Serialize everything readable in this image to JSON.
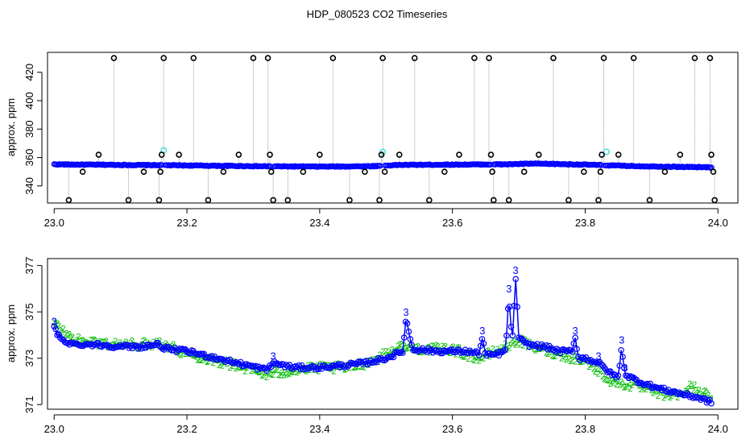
{
  "figure": {
    "title": "HDP_080523  CO2 Timeseries"
  },
  "colors": {
    "blue": "#0000ff",
    "cyan": "#40e0e0",
    "green": "#00bb00",
    "black": "#000000",
    "grey": "#9a9a9a"
  },
  "chart_data": [
    {
      "type": "scatter",
      "title": "",
      "xlabel": "",
      "ylabel": "approx. ppm",
      "xlim": [
        22.99,
        24.03
      ],
      "ylim": [
        328,
        434
      ],
      "xticks": [
        "23.0",
        "23.2",
        "23.4",
        "23.6",
        "23.8",
        "24.0"
      ],
      "yticks": [
        "340",
        "360",
        "380",
        "400",
        "420"
      ],
      "series": [
        {
          "x": [
            23.0,
            23.04,
            23.08,
            23.12,
            23.16,
            23.2,
            23.24,
            23.28,
            23.32,
            23.36,
            23.4,
            23.44,
            23.48,
            23.52,
            23.56,
            23.6,
            23.64,
            23.68,
            23.72,
            23.76,
            23.8,
            23.84,
            23.88,
            23.92,
            23.96,
            23.99
          ],
          "y": [
            355.2,
            355.0,
            354.9,
            354.7,
            354.6,
            354.4,
            354.2,
            354.0,
            353.8,
            353.7,
            353.6,
            353.7,
            353.9,
            354.8,
            354.9,
            355.0,
            355.1,
            355.2,
            355.7,
            355.4,
            355.0,
            354.4,
            353.9,
            353.6,
            353.3,
            353.1
          ]
        },
        {
          "x": [
            23.165,
            23.495,
            23.832
          ],
          "y": [
            365,
            364,
            364
          ]
        },
        {
          "x": [
            23.022,
            23.043,
            23.067,
            23.09,
            23.112,
            23.135,
            23.158,
            23.16,
            23.162,
            23.165,
            23.188,
            23.21,
            23.232,
            23.255,
            23.278,
            23.3,
            23.322,
            23.325,
            23.327,
            23.33,
            23.352,
            23.375,
            23.4,
            23.42,
            23.445,
            23.468,
            23.49,
            23.493,
            23.495,
            23.498,
            23.52,
            23.543,
            23.565,
            23.588,
            23.61,
            23.633,
            23.655,
            23.658,
            23.66,
            23.662,
            23.685,
            23.708,
            23.73,
            23.752,
            23.775,
            23.798,
            23.82,
            23.823,
            23.825,
            23.828,
            23.85,
            23.873,
            23.897,
            23.92,
            23.943,
            23.965,
            23.988,
            23.99,
            23.993,
            23.995
          ],
          "y": [
            330,
            350,
            362,
            430,
            330,
            350,
            330,
            350,
            362,
            430,
            362,
            430,
            330,
            350,
            362,
            430,
            430,
            362,
            350,
            330,
            330,
            350,
            362,
            430,
            330,
            350,
            330,
            362,
            430,
            350,
            362,
            430,
            330,
            350,
            362,
            430,
            430,
            362,
            350,
            330,
            330,
            350,
            362,
            430,
            330,
            350,
            330,
            350,
            362,
            430,
            362,
            430,
            330,
            350,
            362,
            430,
            430,
            362,
            350,
            330
          ]
        }
      ]
    },
    {
      "type": "scatter",
      "title": "",
      "xlabel": "",
      "ylabel": "approx. ppm",
      "xlim": [
        22.99,
        24.03
      ],
      "ylim": [
        370.8,
        377.3
      ],
      "xticks": [
        "23.0",
        "23.2",
        "23.4",
        "23.6",
        "23.8",
        "24.0"
      ],
      "yticks": [
        "371",
        "373",
        "375",
        "377"
      ],
      "series": [
        {
          "x": [
            23.0,
            23.01,
            23.03,
            23.06,
            23.1,
            23.13,
            23.155,
            23.17,
            23.2,
            23.23,
            23.26,
            23.29,
            23.32,
            23.33,
            23.36,
            23.4,
            23.44,
            23.47,
            23.5,
            23.525,
            23.53,
            23.54,
            23.58,
            23.62,
            23.64,
            23.645,
            23.65,
            23.67,
            23.68,
            23.685,
            23.69,
            23.695,
            23.7,
            23.71,
            23.74,
            23.76,
            23.78,
            23.785,
            23.79,
            23.8,
            23.82,
            23.84,
            23.85,
            23.855,
            23.86,
            23.88,
            23.91,
            23.94,
            23.97,
            23.99
          ],
          "y": [
            374.3,
            373.8,
            373.6,
            373.6,
            373.5,
            373.5,
            373.6,
            373.4,
            373.3,
            373.1,
            372.9,
            372.7,
            372.5,
            372.8,
            372.6,
            372.6,
            372.7,
            372.8,
            373.0,
            373.3,
            374.7,
            373.4,
            373.3,
            373.3,
            373.2,
            373.9,
            373.1,
            373.2,
            373.3,
            375.7,
            373.6,
            376.5,
            373.9,
            373.6,
            373.5,
            373.3,
            373.3,
            373.9,
            373.0,
            373.0,
            372.8,
            372.3,
            372.2,
            373.5,
            372.3,
            372.0,
            371.7,
            371.5,
            371.3,
            371.1
          ]
        },
        {
          "x": [
            23.0,
            23.03,
            23.06,
            23.1,
            23.13,
            23.16,
            23.2,
            23.23,
            23.26,
            23.29,
            23.32,
            23.36,
            23.4,
            23.44,
            23.48,
            23.52,
            23.56,
            23.6,
            23.64,
            23.68,
            23.7,
            23.72,
            23.76,
            23.8,
            23.84,
            23.88,
            23.91,
            23.94,
            23.96,
            23.99
          ],
          "y": [
            374.5,
            373.8,
            373.7,
            373.6,
            373.6,
            373.7,
            373.2,
            373.0,
            372.8,
            372.6,
            372.3,
            372.5,
            372.6,
            372.6,
            372.9,
            373.5,
            373.4,
            373.4,
            373.0,
            373.5,
            373.8,
            373.5,
            373.2,
            372.9,
            372.0,
            371.8,
            371.5,
            371.4,
            371.8,
            371.3
          ]
        }
      ]
    }
  ]
}
